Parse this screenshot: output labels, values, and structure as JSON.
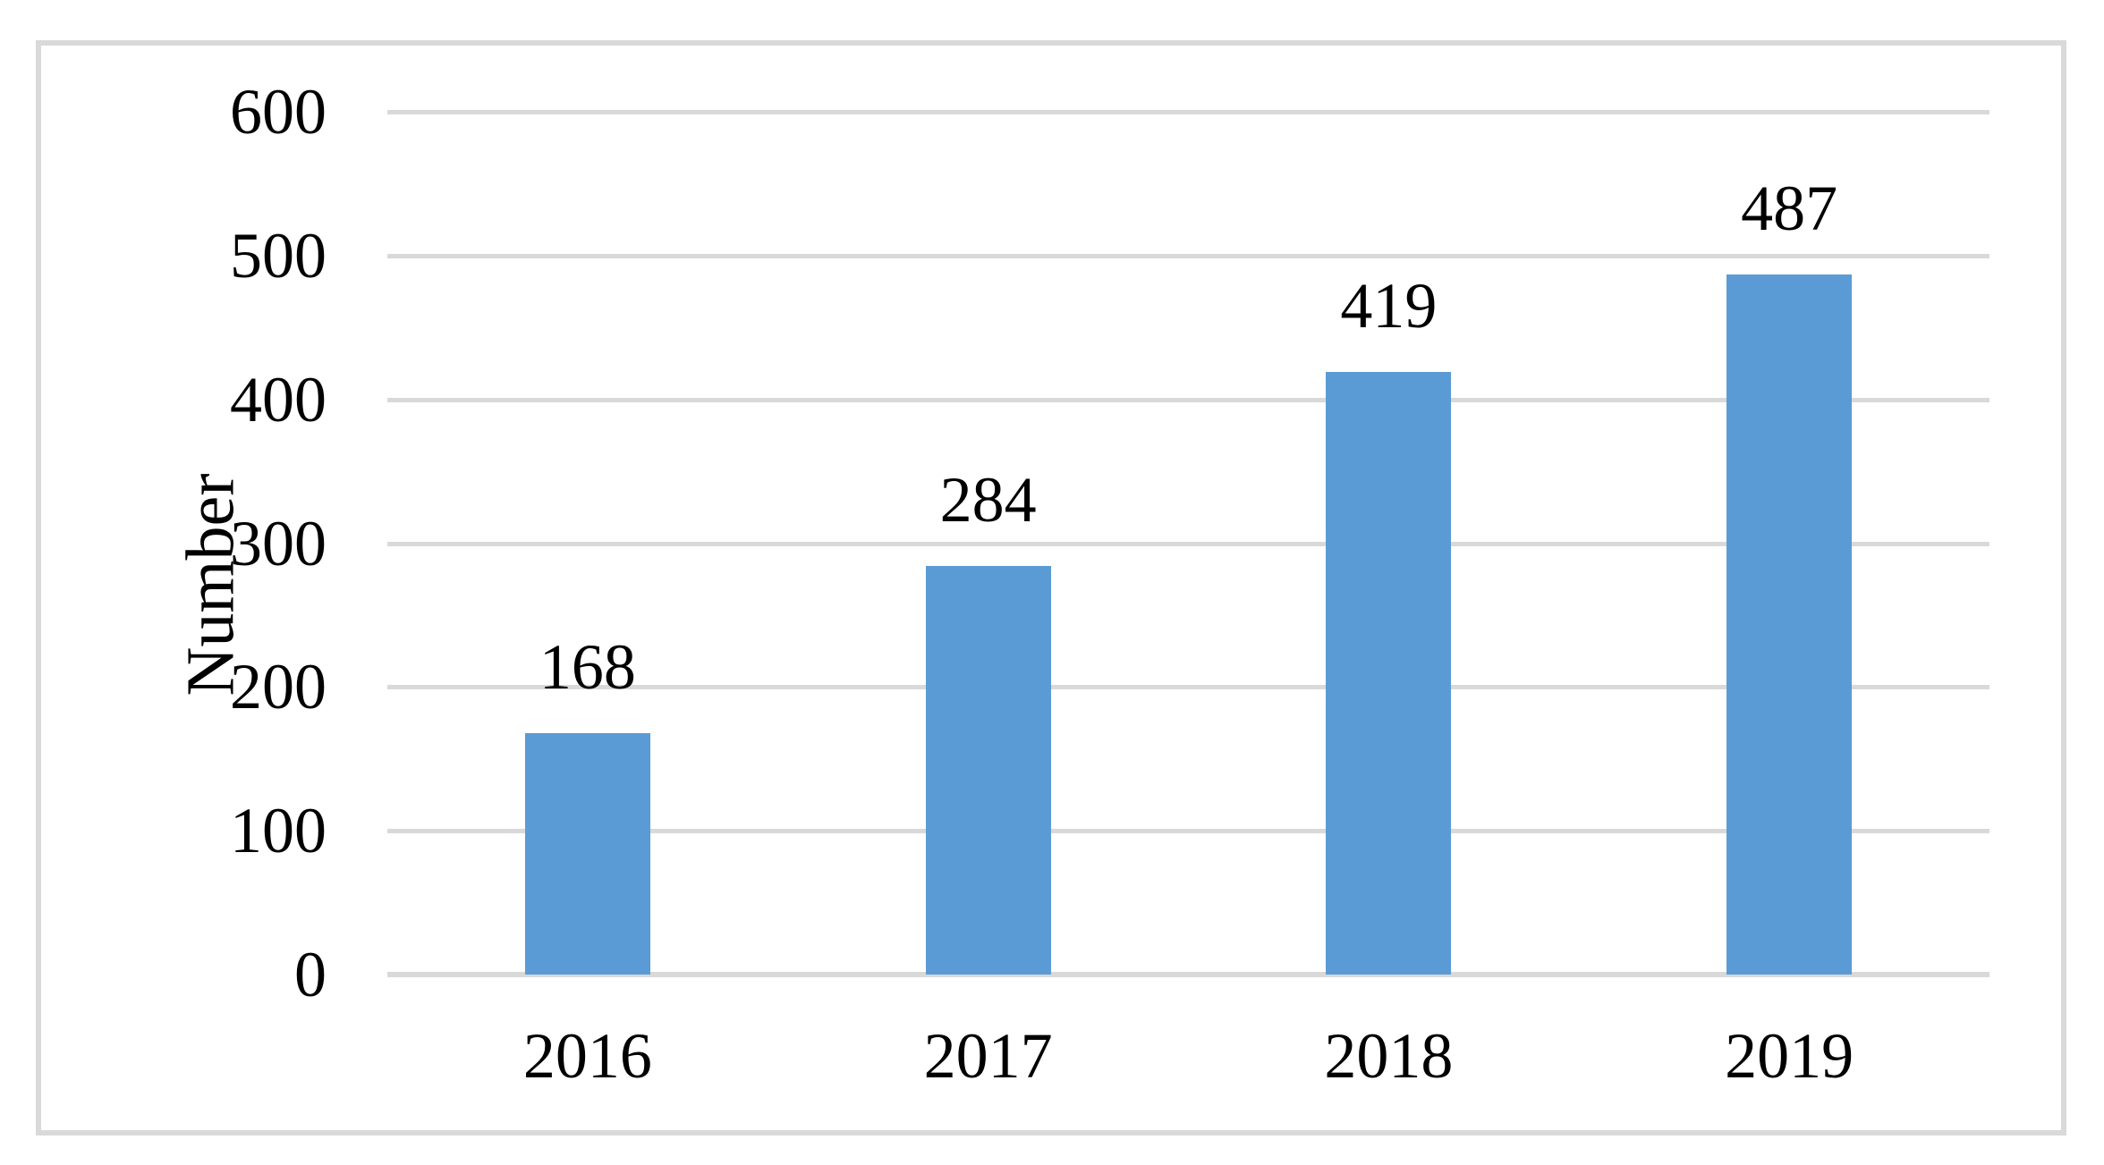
{
  "chart_data": {
    "type": "bar",
    "categories": [
      "2016",
      "2017",
      "2018",
      "2019"
    ],
    "values": [
      168,
      284,
      419,
      487
    ],
    "data_labels": [
      "168",
      "284",
      "419",
      "487"
    ],
    "title": "",
    "xlabel": "",
    "ylabel": "Number",
    "ylim": [
      0,
      600
    ],
    "yticks": [
      0,
      100,
      200,
      300,
      400,
      500,
      600
    ],
    "grid": true,
    "legend": "none",
    "colors": {
      "bar": "#5B9BD5",
      "gridline": "#D9D9D9",
      "axis_line": "#D9D9D9",
      "frame_border": "#D9D9D9",
      "text": "#000000"
    }
  }
}
